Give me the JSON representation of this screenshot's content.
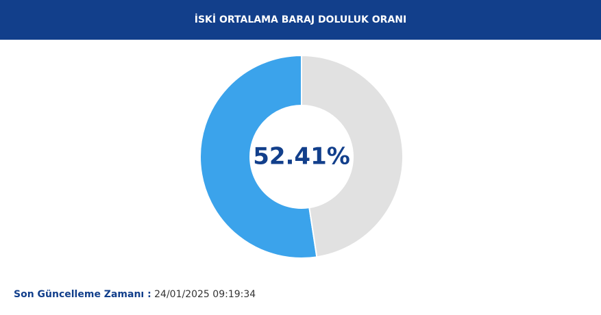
{
  "header": {
    "title": "İSKİ ORTALAMA BARAJ DOLULUK ORANI"
  },
  "chart_data": {
    "type": "donut",
    "values": [
      52.41,
      47.59
    ],
    "value_labels": [
      "52.41%",
      null
    ],
    "colors": [
      "#3ba3eb",
      "#e1e1e1"
    ]
  },
  "footer": {
    "label": "Son Güncelleme Zamanı :",
    "value": "24/01/2025 09:19:34"
  }
}
